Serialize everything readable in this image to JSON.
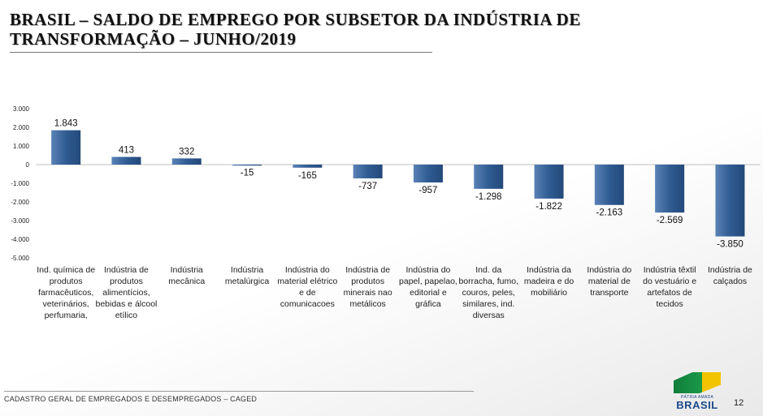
{
  "title_line1": "BRASIL – SALDO DE EMPREGO POR SUBSETOR DA INDÚSTRIA DE",
  "title_line2": "TRANSFORMAÇÃO – JUNHO/2019",
  "footer": "CADASTRO GERAL DE EMPREGADOS E DESEMPREGADOS – CAGED",
  "page_number": "12",
  "logo": {
    "top_text": "PÁTRIA AMADA",
    "main_text": "BRASIL"
  },
  "colors": {
    "bar": "#2f5c93",
    "bar_light": "#5a82b6",
    "axis": "#bfbfbf"
  },
  "chart_data": {
    "type": "bar",
    "title": "BRASIL – SALDO DE EMPREGO POR SUBSETOR DA INDÚSTRIA DE TRANSFORMAÇÃO – JUNHO/2019",
    "xlabel": "",
    "ylabel": "",
    "ylim": [
      -5000,
      3000
    ],
    "yticks": [
      3000,
      2000,
      1000,
      0,
      -1000,
      -2000,
      -3000,
      -4000,
      -5000
    ],
    "ytick_labels": [
      "3.000",
      "2.000",
      "1.000",
      "0",
      "-1.000",
      "-2.000",
      "-3.000",
      "-4.000",
      "-5.000"
    ],
    "grid": false,
    "categories": [
      "Ind. química de produtos farmacêuticos, veterinários, perfumaria,",
      "Indústria de produtos alimentícios, bebidas e álcool etílico",
      "Indústria mecânica",
      "Indústria metalúrgica",
      "Indústria do material elétrico e de comunicacoes",
      "Indústria de produtos minerais nao metálicos",
      "Indústria do papel, papelao, editorial e gráfica",
      "Ind. da borracha, fumo, couros, peles, similares, ind. diversas",
      "Indústria da madeira e do mobiliário",
      "Indústria do material de transporte",
      "Indústria têxtil do vestuário e artefatos de tecidos",
      "Indústria de calçados"
    ],
    "values": [
      1843,
      413,
      332,
      -15,
      -165,
      -737,
      -957,
      -1298,
      -1822,
      -2163,
      -2569,
      -3850
    ],
    "value_labels": [
      "1.843",
      "413",
      "332",
      "-15",
      "-165",
      "-737",
      "-957",
      "-1.298",
      "-1.822",
      "-2.163",
      "-2.569",
      "-3.850"
    ]
  }
}
